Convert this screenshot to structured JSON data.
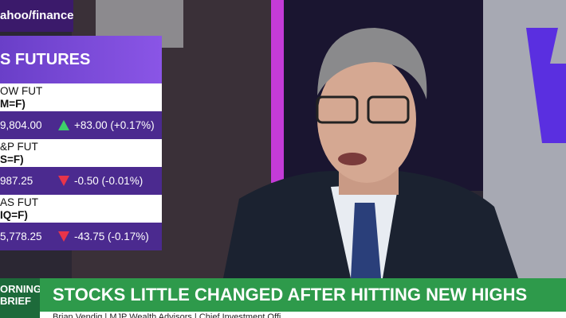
{
  "logo": "ahoo/finance",
  "panel": {
    "title": "S FUTURES",
    "rows": [
      {
        "name": "OW FUT",
        "symbol": "M=F)",
        "price": "9,804.00",
        "change": "+83.00 (+0.17%)",
        "direction": "up"
      },
      {
        "name": "&P FUT",
        "symbol": "S=F)",
        "price": "987.25",
        "change": "-0.50 (-0.01%)",
        "direction": "down"
      },
      {
        "name": "AS FUT",
        "symbol": "IQ=F)",
        "price": "5,778.25",
        "change": "-43.75 (-0.17%)",
        "direction": "down"
      }
    ]
  },
  "banner": {
    "show": [
      "ORNING",
      "BRIEF"
    ],
    "headline": "STOCKS LITTLE CHANGED AFTER HITTING NEW HIGHS",
    "lower_third": "Brian Vendig | MJP Wealth Advisors | Chief Investment Offi"
  }
}
